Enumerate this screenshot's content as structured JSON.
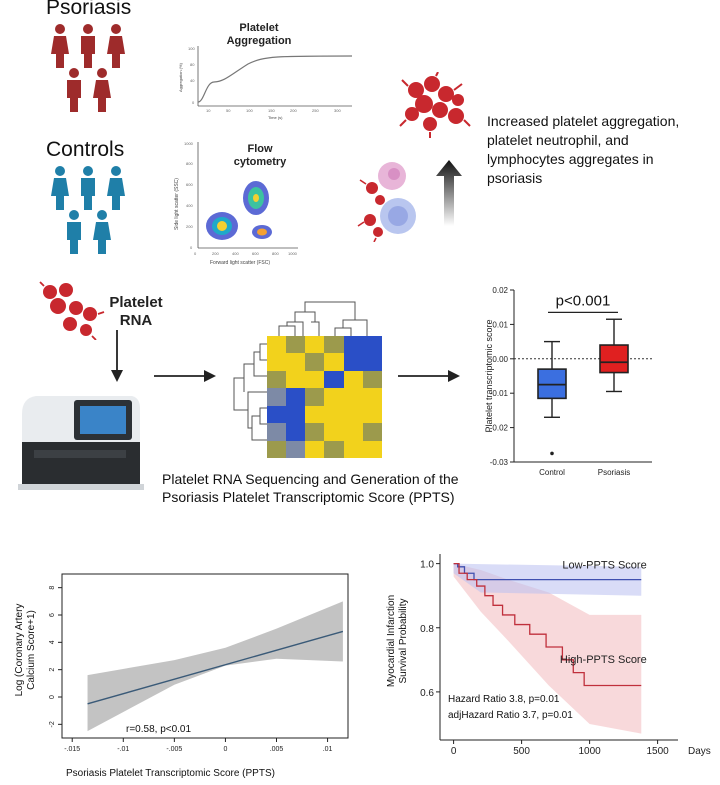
{
  "groups": {
    "psoriasis_label": "Psoriasis",
    "controls_label": "Controls"
  },
  "aggregation_panel": {
    "title": "Platelet Aggregation",
    "y_label": "Aggregation (%)",
    "x_label": "Time (s)"
  },
  "flow_panel": {
    "title": "Flow cytometry",
    "y_label": "Side light scatter (SSC)",
    "x_label": "Forward light scatter (FSC)",
    "x_ticks": [
      "0",
      "200",
      "400",
      "600",
      "800",
      "1000"
    ],
    "y_ticks": [
      "0",
      "200",
      "400",
      "600",
      "800",
      "1000"
    ]
  },
  "finding_text": "Increased platelet aggregation, platelet neutrophil, and lymphocytes aggregates in psoriasis",
  "platelet_rna_label": "Platelet RNA",
  "sequencing_caption": "Platelet RNA Sequencing and Generation of the Psoriasis Platelet Transcriptomic Score (PPTS)",
  "heatmap_colors": {
    "blue": "#2a4fc7",
    "yellow": "#f2d21c",
    "olive": "#9c9a4c",
    "grey": "#7d8aa6"
  },
  "chart_data": [
    {
      "type": "box",
      "title": "",
      "ylabel": "Platelet transcriptomic score",
      "categories": [
        "Control",
        "Psoriasis"
      ],
      "ylim": [
        -0.03,
        0.02
      ],
      "yticks": [
        "0.02",
        "0.01",
        "0.00",
        "-0.01",
        "-0.02",
        "-0.03"
      ],
      "boxes": [
        {
          "name": "Control",
          "min": -0.017,
          "q1": -0.0115,
          "median": -0.0075,
          "q3": -0.003,
          "max": 0.005,
          "outlier": -0.0275,
          "color": "#3b6fe0"
        },
        {
          "name": "Psoriasis",
          "min": -0.0095,
          "q1": -0.004,
          "median": -0.001,
          "q3": 0.004,
          "max": 0.0115,
          "color": "#e02020"
        }
      ],
      "annotation": "p<0.001"
    },
    {
      "type": "line",
      "xlabel": "Psoriasis Platelet Transcriptomic Score (PPTS)",
      "ylabel": "Log (Coronary Artery Calcium Score+1)",
      "xticks": [
        "-.015",
        "-.01",
        "-.005",
        "0",
        ".005",
        ".01"
      ],
      "yticks": [
        "8",
        "6",
        "4",
        "2",
        "0",
        "-2"
      ],
      "xlim": [
        -0.016,
        0.012
      ],
      "ylim": [
        -3,
        9
      ],
      "fit_line": [
        [
          -0.0135,
          -0.5
        ],
        [
          0.0115,
          4.8
        ]
      ],
      "ci_upper": [
        [
          -0.0135,
          1.6
        ],
        [
          -0.005,
          2.7
        ],
        [
          0.0,
          3.6
        ],
        [
          0.005,
          5.0
        ],
        [
          0.0115,
          7.0
        ]
      ],
      "ci_lower": [
        [
          -0.0135,
          -2.5
        ],
        [
          -0.005,
          0.9
        ],
        [
          0.0,
          2.3
        ],
        [
          0.005,
          2.8
        ],
        [
          0.0115,
          2.6
        ]
      ],
      "annotation": "r=0.58, p<0.01"
    },
    {
      "type": "line",
      "xlabel": "Days",
      "ylabel": "Myocardial Infarction Survival Probability",
      "xticks": [
        "0",
        "500",
        "1000",
        "1500"
      ],
      "yticks": [
        "1.0",
        "0.8",
        "0.6"
      ],
      "xlim": [
        -100,
        1650
      ],
      "ylim": [
        0.45,
        1.03
      ],
      "series": [
        {
          "name": "Low-PPTS Score",
          "color": "#4050b0",
          "points": [
            [
              0,
              1.0
            ],
            [
              30,
              0.99
            ],
            [
              80,
              0.97
            ],
            [
              150,
              0.95
            ],
            [
              1380,
              0.95
            ]
          ]
        },
        {
          "name": "High-PPTS Score",
          "color": "#c0303c",
          "points": [
            [
              0,
              1.0
            ],
            [
              40,
              0.97
            ],
            [
              100,
              0.95
            ],
            [
              170,
              0.93
            ],
            [
              230,
              0.9
            ],
            [
              290,
              0.87
            ],
            [
              360,
              0.84
            ],
            [
              450,
              0.81
            ],
            [
              560,
              0.78
            ],
            [
              680,
              0.74
            ],
            [
              800,
              0.7
            ],
            [
              880,
              0.66
            ],
            [
              960,
              0.62
            ],
            [
              1380,
              0.62
            ]
          ]
        }
      ],
      "annotations": [
        "Hazard Ratio 3.8, p=0.01",
        "adjHazard Ratio 3.7, p=0.01"
      ]
    }
  ]
}
